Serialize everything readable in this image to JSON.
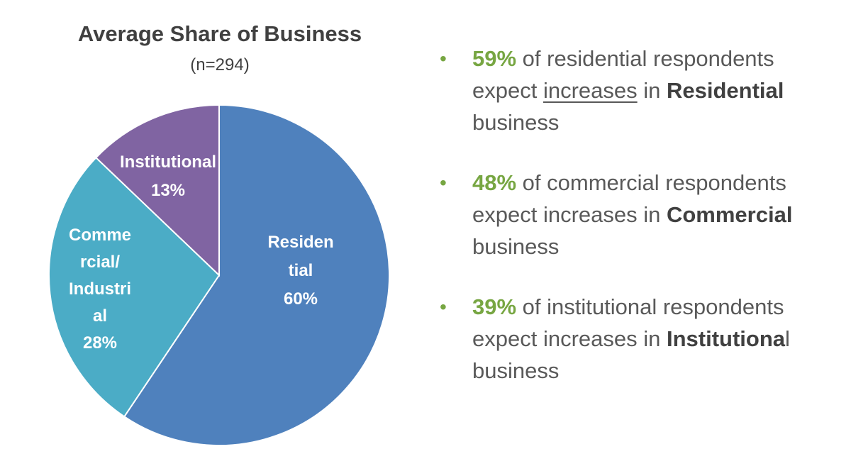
{
  "chart_data": {
    "type": "pie",
    "title": "Average Share of Business",
    "subtitle": "(n=294)",
    "slices": [
      {
        "name": "Residential",
        "label_lines": [
          "Residen",
          "tial",
          "60%"
        ],
        "value": 60,
        "color": "#4f81bd"
      },
      {
        "name": "Commercial/Industrial",
        "label_lines": [
          "Comme",
          "rcial/",
          "Industri",
          "al",
          "28%"
        ],
        "value": 28,
        "color": "#4bacc6"
      },
      {
        "name": "Institutional",
        "label_lines": [
          "Institutional",
          "13%"
        ],
        "value": 13,
        "color": "#8064a2"
      }
    ],
    "start": "12 o'clock",
    "direction": "clockwise"
  },
  "bullets": [
    {
      "pct": "59%",
      "pre": " of residential respondents expect ",
      "underlined": "increases",
      "mid": " in ",
      "bold": "Residential",
      "post": " business"
    },
    {
      "pct": "48%",
      "pre": " of commercial respondents expect increases in ",
      "underlined": "",
      "mid": "",
      "bold": "Commercial",
      "post": " business"
    },
    {
      "pct": "39%",
      "pre": " of institutional respondents expect increases in ",
      "underlined": "",
      "mid": "",
      "bold": "Institutiona",
      "post": "l business"
    }
  ],
  "bullet_glyph": "•",
  "colors": {
    "accent_green": "#77a642",
    "text_gray": "#595959",
    "text_dark": "#404040"
  }
}
